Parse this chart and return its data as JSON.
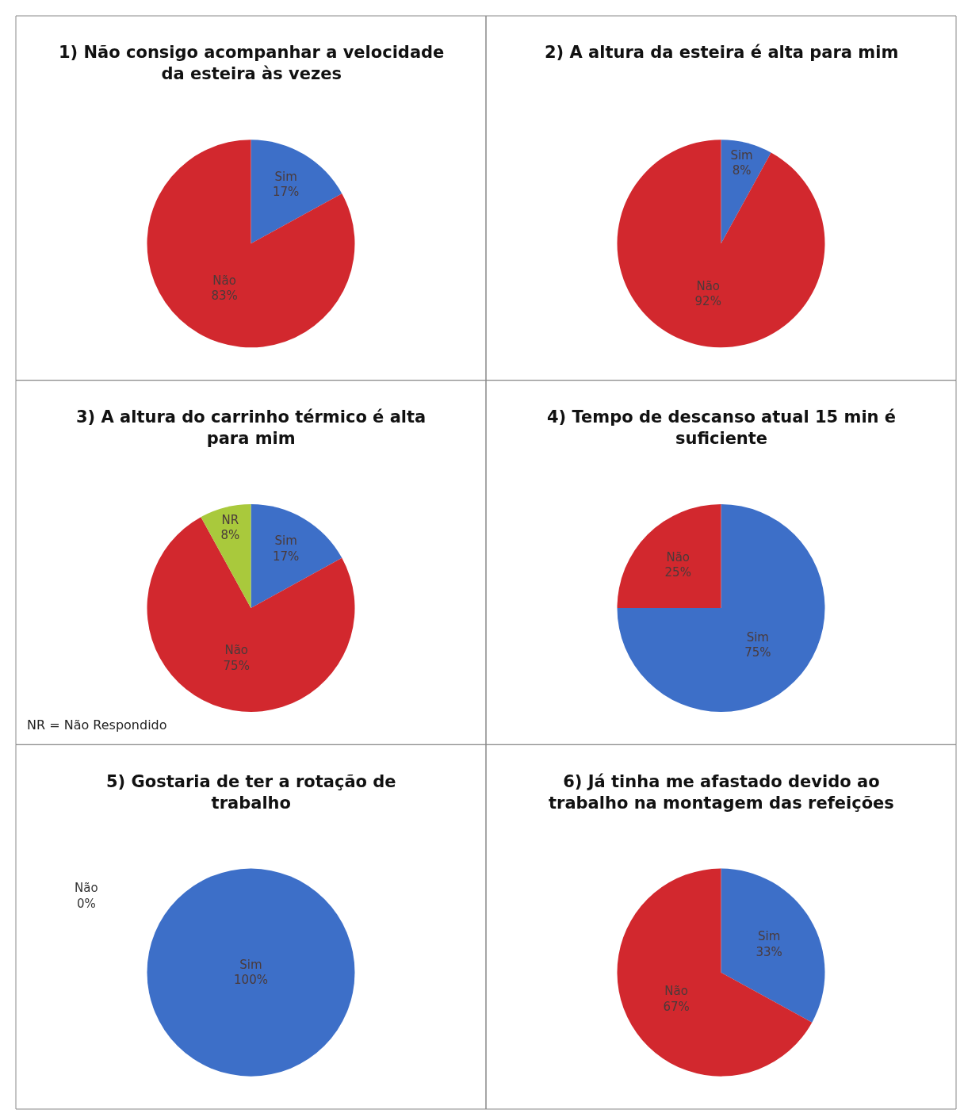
{
  "chart_data": [
    {
      "type": "pie",
      "title": "1) Não consigo acompanhar a velocidade da esteira às vezes",
      "categories": [
        "Sim",
        "Não"
      ],
      "values": [
        17,
        83
      ],
      "value_labels": [
        "17%",
        "83%"
      ],
      "colors": [
        "#3d6fc8",
        "#d2282e"
      ]
    },
    {
      "type": "pie",
      "title": "2) A altura da esteira é alta para mim",
      "categories": [
        "Sim",
        "Não"
      ],
      "values": [
        8,
        92
      ],
      "value_labels": [
        "8%",
        "92%"
      ],
      "colors": [
        "#3d6fc8",
        "#d2282e"
      ]
    },
    {
      "type": "pie",
      "title": "3) A altura do carrinho térmico é alta para mim",
      "categories": [
        "Sim",
        "Não",
        "NR"
      ],
      "values": [
        17,
        75,
        8
      ],
      "value_labels": [
        "17%",
        "75%",
        "8%"
      ],
      "colors": [
        "#3d6fc8",
        "#d2282e",
        "#a9c93c"
      ],
      "annotations": [
        "NR = Não Respondido"
      ]
    },
    {
      "type": "pie",
      "title": "4) Tempo de descanso atual 15 min é suficiente",
      "categories": [
        "Sim",
        "Não"
      ],
      "values": [
        75,
        25
      ],
      "value_labels": [
        "75%",
        "25%"
      ],
      "colors": [
        "#3d6fc8",
        "#d2282e"
      ]
    },
    {
      "type": "pie",
      "title": "5) Gostaria de ter a rotação de trabalho",
      "categories": [
        "Sim",
        "Não"
      ],
      "values": [
        100,
        0
      ],
      "value_labels": [
        "100%",
        "0%"
      ],
      "colors": [
        "#3d6fc8",
        "#d2282e"
      ]
    },
    {
      "type": "pie",
      "title": "6) Já tinha me afastado devido ao trabalho na montagem das refeições",
      "categories": [
        "Sim",
        "Não"
      ],
      "values": [
        33,
        67
      ],
      "value_labels": [
        "33%",
        "67%"
      ],
      "colors": [
        "#3d6fc8",
        "#d2282e"
      ]
    }
  ]
}
